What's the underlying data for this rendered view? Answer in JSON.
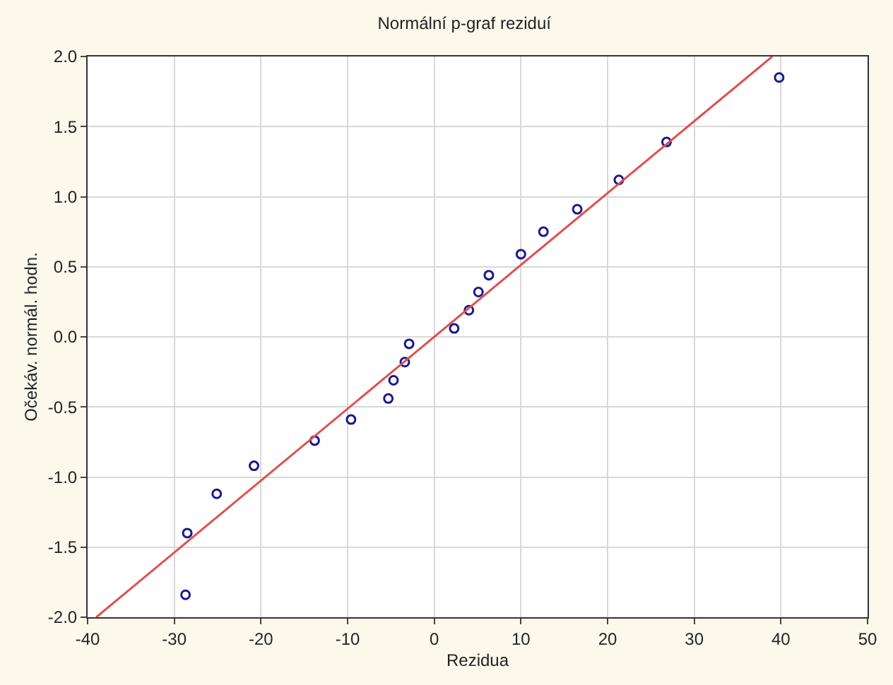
{
  "chart_data": {
    "type": "scatter",
    "title": "Normální p-graf reziduí",
    "xlabel": "Rezidua",
    "ylabel": "Očekáv. normál. hodn.",
    "xlim": [
      -40,
      50
    ],
    "xticks": [
      -40,
      -30,
      -20,
      -10,
      0,
      10,
      20,
      30,
      40,
      50
    ],
    "ylim": [
      -2,
      2
    ],
    "yticks": [
      {
        "value": -2,
        "label": "-2.0"
      },
      {
        "value": -1.5,
        "label": "-1.5"
      },
      {
        "value": -1,
        "label": "-1.0"
      },
      {
        "value": -0.5,
        "label": "-0.5"
      },
      {
        "value": 0,
        "label": "0.0"
      },
      {
        "value": 0.5,
        "label": "0.5"
      },
      {
        "value": 1,
        "label": "1.0"
      },
      {
        "value": 1.5,
        "label": "1.5"
      },
      {
        "value": 2,
        "label": "2.0"
      }
    ],
    "grid": true,
    "marker": "circle",
    "series": [
      {
        "color": "#1a1a8c",
        "x": [
          -28.5,
          -28.7,
          -25.1,
          -20.8,
          -13.8,
          -9.6,
          -5.3,
          -4.7,
          -3.4,
          -2.9,
          2.3,
          4.0,
          5.1,
          6.3,
          10.0,
          12.6,
          16.5,
          21.3,
          26.8,
          39.8
        ],
        "values": [
          -1.4,
          -1.84,
          -1.12,
          -0.92,
          -0.74,
          -0.59,
          -0.44,
          -0.31,
          -0.18,
          -0.05,
          0.06,
          0.19,
          0.32,
          0.44,
          0.59,
          0.75,
          0.91,
          1.12,
          1.39,
          1.85
        ]
      },
      {
        "type": "line",
        "color": "#e05050",
        "marker": "none",
        "line_style": "solid",
        "x": [
          -39,
          39
        ],
        "values": [
          -2,
          2
        ]
      }
    ]
  }
}
